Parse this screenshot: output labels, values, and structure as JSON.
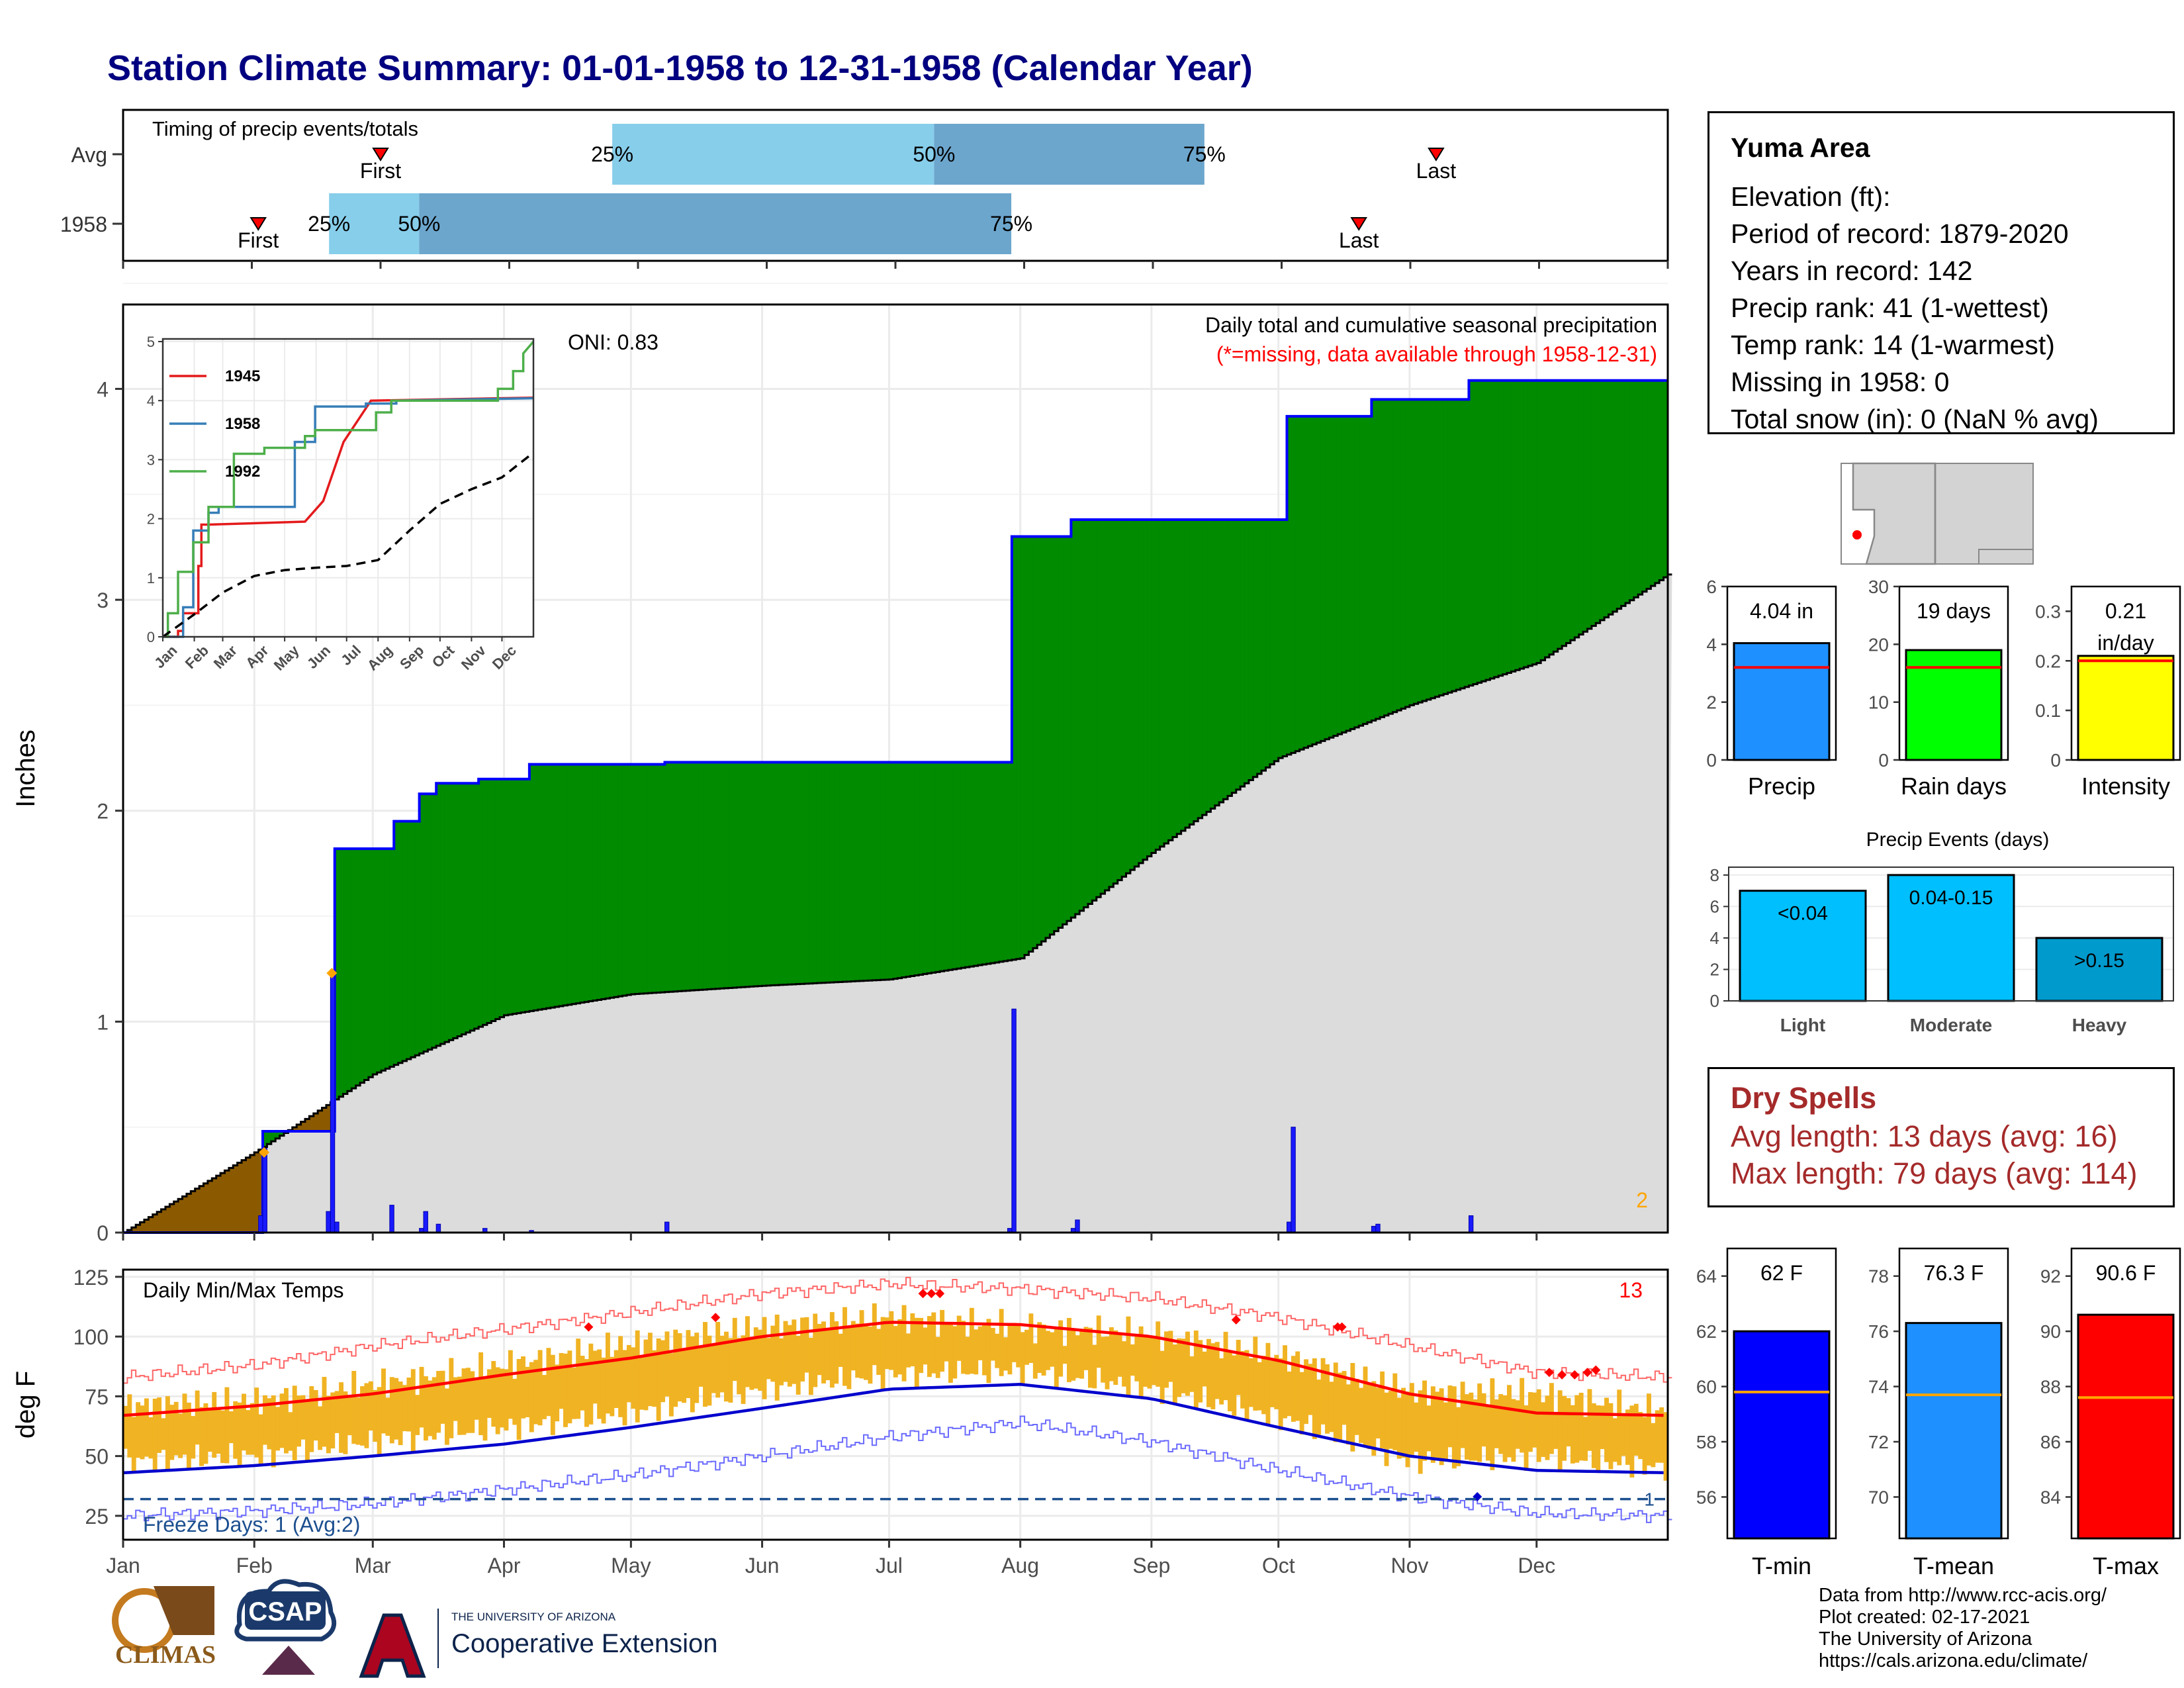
{
  "title": "Station Climate Summary: 01-01-1958 to 12-31-1958 (Calendar Year)",
  "timing": {
    "label": "Timing of precip events/totals",
    "rows": [
      {
        "name": "Avg",
        "first_month": 3.0,
        "last_month": 11.2,
        "p25": 4.8,
        "p50": 7.3,
        "p75": 9.4,
        "first_label": "First",
        "last_label": "Last",
        "p25_label": "25%",
        "p50_label": "50%",
        "p75_label": "75%"
      },
      {
        "name": "1958",
        "first_month": 2.05,
        "last_month": 10.6,
        "p25": 2.6,
        "p50": 3.3,
        "p75": 7.9,
        "first_label": "First",
        "last_label": "Last",
        "p25_label": "25%",
        "p50_label": "50%",
        "p75_label": "75%"
      }
    ],
    "colors": {
      "light": "#87ceeb",
      "dark": "#6ca6cd"
    }
  },
  "chart_data": [
    {
      "type": "area",
      "id": "precip",
      "ylabel": "Inches",
      "ylim": [
        0,
        4.4
      ],
      "yticks": [
        0,
        1,
        2,
        3,
        4
      ],
      "xlim": [
        0,
        365
      ],
      "month_labels": [
        "Jan",
        "Feb",
        "Mar",
        "Apr",
        "May",
        "Jun",
        "Jul",
        "Aug",
        "Sep",
        "Oct",
        "Nov",
        "Dec"
      ],
      "title": "Daily total and cumulative seasonal precipitation",
      "subtitle": "(*=missing, data available through 1958-12-31)",
      "oni_label": "ONI: 0.83",
      "corner_count": "2",
      "cumulative_1958": {
        "day": [
          0,
          33,
          33,
          50,
          50,
          64,
          64,
          70,
          70,
          74,
          74,
          84,
          84,
          96,
          96,
          128,
          128,
          210,
          210,
          224,
          224,
          275,
          275,
          295,
          295,
          318,
          318,
          365
        ],
        "value": [
          0,
          0,
          0.48,
          0.48,
          1.82,
          1.82,
          1.95,
          1.95,
          2.08,
          2.08,
          2.13,
          2.13,
          2.15,
          2.15,
          2.22,
          2.22,
          2.23,
          2.23,
          3.3,
          3.3,
          3.38,
          3.38,
          3.87,
          3.87,
          3.95,
          3.95,
          4.04,
          4.04
        ]
      },
      "normal_cumulative": {
        "day": [
          0,
          31,
          59,
          90,
          120,
          151,
          181,
          212,
          243,
          273,
          304,
          334,
          365
        ],
        "value": [
          0,
          0.38,
          0.75,
          1.03,
          1.13,
          1.17,
          1.2,
          1.3,
          1.8,
          2.25,
          2.5,
          2.7,
          3.12
        ]
      },
      "daily": {
        "day": [
          32,
          33,
          48,
          49,
          50,
          63,
          70,
          71,
          74,
          85,
          96,
          128,
          209,
          210,
          224,
          225,
          275,
          276,
          295,
          296,
          318
        ],
        "value": [
          0.08,
          0.4,
          0.1,
          1.22,
          0.05,
          0.13,
          0.02,
          0.1,
          0.04,
          0.02,
          0.01,
          0.05,
          0.02,
          1.06,
          0.02,
          0.06,
          0.05,
          0.5,
          0.03,
          0.04,
          0.08
        ]
      },
      "colors": {
        "above": "#008b00",
        "below": "#8b5a00",
        "normal": "#dcdcdc",
        "line": "#0000ff"
      }
    },
    {
      "type": "line",
      "id": "inset",
      "ylim": [
        0,
        5
      ],
      "yticks": [
        0,
        1,
        2,
        3,
        4,
        5
      ],
      "month_labels": [
        "Jan",
        "Feb",
        "Mar",
        "Apr",
        "May",
        "Jun",
        "Jul",
        "Aug",
        "Sep",
        "Oct",
        "Nov",
        "Dec"
      ],
      "series": [
        {
          "name": "1945",
          "color": "#e41a1c",
          "day": [
            0,
            15,
            15,
            20,
            20,
            35,
            35,
            38,
            38,
            45,
            45,
            140,
            140,
            158,
            158,
            178,
            178,
            205,
            205,
            365
          ],
          "value": [
            0,
            0,
            0.1,
            0.1,
            0.4,
            0.4,
            1.2,
            1.2,
            1.9,
            1.9,
            1.9,
            1.95,
            1.95,
            2.3,
            2.3,
            3.3,
            3.3,
            4.0,
            4.0,
            4.05
          ]
        },
        {
          "name": "1958",
          "color": "#377eb8",
          "day": [
            0,
            20,
            20,
            30,
            30,
            45,
            45,
            55,
            55,
            130,
            130,
            150,
            150,
            200,
            200,
            230,
            230,
            365
          ],
          "value": [
            0,
            0,
            0.5,
            0.5,
            1.8,
            1.8,
            2.1,
            2.1,
            2.2,
            2.2,
            3.3,
            3.3,
            3.9,
            3.9,
            3.95,
            3.95,
            4.0,
            4.04
          ]
        },
        {
          "name": "1992",
          "color": "#4daf4a",
          "day": [
            0,
            5,
            5,
            15,
            15,
            30,
            30,
            45,
            45,
            70,
            70,
            100,
            100,
            140,
            140,
            150,
            150,
            210,
            210,
            225,
            225,
            330,
            330,
            345,
            345,
            355,
            355,
            365
          ],
          "value": [
            0,
            0,
            0.4,
            0.4,
            1.1,
            1.1,
            1.6,
            1.6,
            2.2,
            2.2,
            3.1,
            3.1,
            3.2,
            3.2,
            3.4,
            3.4,
            3.5,
            3.5,
            3.8,
            3.8,
            4.0,
            4.0,
            4.2,
            4.2,
            4.5,
            4.5,
            4.8,
            5.0
          ]
        },
        {
          "name": "",
          "color": "#000000",
          "dashed": true,
          "day": [
            0,
            31,
            59,
            90,
            120,
            151,
            181,
            212,
            243,
            273,
            304,
            334,
            365
          ],
          "value": [
            0,
            0.38,
            0.75,
            1.03,
            1.13,
            1.17,
            1.2,
            1.3,
            1.8,
            2.25,
            2.5,
            2.7,
            3.12
          ]
        }
      ]
    },
    {
      "type": "line",
      "id": "temps",
      "title": "Daily Min/Max Temps",
      "ylabel": "deg F",
      "ylim": [
        15,
        128
      ],
      "yticks": [
        25,
        50,
        75,
        100,
        125
      ],
      "month_labels": [
        "Jan",
        "Feb",
        "Mar",
        "Apr",
        "May",
        "Jun",
        "Jul",
        "Aug",
        "Sep",
        "Oct",
        "Nov",
        "Dec"
      ],
      "freeze_label": "Freeze Days: 1 (Avg:2)",
      "freeze_line": 32,
      "record_count": "13",
      "freeze_count": "1",
      "normal_max": {
        "day": [
          0,
          31,
          59,
          90,
          120,
          151,
          181,
          212,
          243,
          273,
          304,
          334,
          365
        ],
        "value": [
          67,
          71,
          76,
          84,
          91,
          100,
          106,
          105,
          100,
          90,
          76,
          68,
          67
        ]
      },
      "normal_min": {
        "day": [
          0,
          31,
          59,
          90,
          120,
          151,
          181,
          212,
          243,
          273,
          304,
          334,
          365
        ],
        "value": [
          43,
          46,
          50,
          55,
          62,
          70,
          78,
          80,
          74,
          62,
          50,
          44,
          43
        ]
      },
      "record_max": {
        "day": [
          0,
          31,
          59,
          90,
          120,
          151,
          181,
          212,
          243,
          273,
          304,
          334,
          365
        ],
        "value": [
          83,
          88,
          96,
          103,
          110,
          118,
          122,
          120,
          116,
          108,
          96,
          85,
          83
        ]
      },
      "record_min": {
        "day": [
          0,
          31,
          59,
          90,
          120,
          151,
          181,
          212,
          243,
          273,
          304,
          334,
          365
        ],
        "value": [
          25,
          27,
          30,
          36,
          42,
          50,
          58,
          64,
          56,
          44,
          33,
          26,
          25
        ]
      },
      "obs_max": {
        "day": [
          0,
          31,
          59,
          90,
          120,
          151,
          181,
          212,
          243,
          273,
          304,
          334,
          365
        ],
        "value": [
          71,
          73,
          80,
          88,
          97,
          104,
          108,
          104,
          101,
          92,
          77,
          76,
          68
        ]
      },
      "obs_min": {
        "day": [
          0,
          31,
          59,
          90,
          120,
          151,
          181,
          212,
          243,
          273,
          304,
          334,
          365
        ],
        "value": [
          48,
          50,
          56,
          62,
          68,
          78,
          84,
          86,
          78,
          66,
          48,
          50,
          45
        ]
      },
      "colors": {
        "band": "#f0b323",
        "normal_max": "#ff0000",
        "normal_min": "#0000cd",
        "record": "#ff6666",
        "record_min": "#6a6aff",
        "freeze": "#1c4f8f"
      }
    },
    {
      "type": "bar",
      "id": "precip-summary",
      "categories": [
        "Precip",
        "Rain days",
        "Intensity"
      ],
      "panels": [
        {
          "label": "Precip",
          "value": 4.04,
          "avg": 3.2,
          "ylim": [
            0,
            6
          ],
          "yticks": [
            0,
            2,
            4,
            6
          ],
          "color": "#1e90ff",
          "value_label": "4.04 in"
        },
        {
          "label": "Rain days",
          "value": 19,
          "avg": 16,
          "ylim": [
            0,
            30
          ],
          "yticks": [
            0,
            10,
            20,
            30
          ],
          "color": "#00ff00",
          "value_label": "19 days"
        },
        {
          "label": "Intensity",
          "value": 0.21,
          "avg": 0.2,
          "ylim": [
            0,
            0.35
          ],
          "yticks": [
            0.0,
            0.1,
            0.2,
            0.3
          ],
          "color": "#ffff00",
          "value_label": "0.21",
          "value_label2": "in/day"
        }
      ]
    },
    {
      "type": "bar",
      "id": "precip-events",
      "title": "Precip Events (days)",
      "categories": [
        "Light",
        "Moderate",
        "Heavy"
      ],
      "values": [
        7,
        8,
        4
      ],
      "bar_labels": [
        "<0.04",
        "0.04-0.15",
        ">0.15"
      ],
      "colors": [
        "#00bfff",
        "#00bfff",
        "#009acd"
      ],
      "ylim": [
        0,
        8.5
      ],
      "yticks": [
        0,
        2,
        4,
        6,
        8
      ]
    },
    {
      "type": "bar",
      "id": "temp-summary",
      "categories": [
        "T-min",
        "T-mean",
        "T-max"
      ],
      "panels": [
        {
          "label": "T-min",
          "value": 62,
          "avg": 59.8,
          "ylim": [
            54.5,
            65
          ],
          "yticks": [
            56,
            58,
            60,
            62,
            64
          ],
          "color": "#0000ff",
          "value_label": "62 F"
        },
        {
          "label": "T-mean",
          "value": 76.3,
          "avg": 73.7,
          "ylim": [
            68.5,
            79
          ],
          "yticks": [
            70,
            72,
            74,
            76,
            78
          ],
          "color": "#1e90ff",
          "value_label": "76.3 F"
        },
        {
          "label": "T-max",
          "value": 90.6,
          "avg": 87.6,
          "ylim": [
            82.5,
            93
          ],
          "yticks": [
            84,
            86,
            88,
            90,
            92
          ],
          "color": "#ff0000",
          "value_label": "90.6 F"
        }
      ]
    }
  ],
  "station": {
    "name": "Yuma Area",
    "lines": [
      "Elevation (ft):",
      "Period of record: 1879-2020",
      "Years in record: 142",
      "Precip rank: 41 (1-wettest)",
      "Temp rank: 14 (1-warmest)",
      "Missing in 1958: 0",
      "Total snow (in): 0 (NaN % avg)"
    ]
  },
  "dry_spells": {
    "title": "Dry Spells",
    "avg_line": "Avg length: 13 days (avg: 16)",
    "max_line": "Max length: 79 days (avg: 114)"
  },
  "credits": [
    "Data from http://www.rcc-acis.org/",
    "Plot created: 02-17-2021",
    "The University of Arizona",
    "https://cals.arizona.edu/climate/"
  ],
  "logos": {
    "climas": "CLIMAS",
    "csap": "CSAP",
    "ua_small": "THE UNIVERSITY OF ARIZONA",
    "ua_big": "Cooperative Extension"
  }
}
